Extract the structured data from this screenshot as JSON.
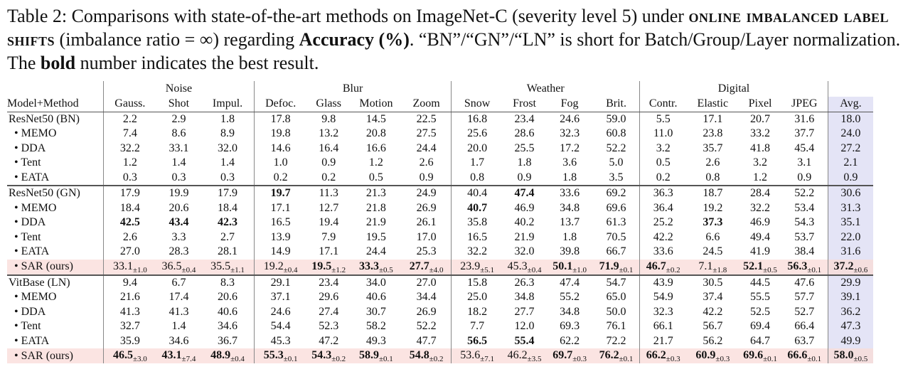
{
  "caption": {
    "part1": "Table 2: Comparisons with state-of-the-art methods on ImageNet-C (severity level 5) under ",
    "smallcaps": "online imbalanced label shifts",
    "part2": " (imbalance ratio = ∞) regarding ",
    "bold1": "Accuracy (%)",
    "part3": ". “BN”/“GN”/“LN” is short for Batch/Group/Layer normalization. The ",
    "bold2": "bold",
    "part4": " number indicates the best result."
  },
  "groups": [
    "Noise",
    "Blur",
    "Weather",
    "Digital"
  ],
  "columns": [
    "Model+Method",
    "Gauss.",
    "Shot",
    "Impul.",
    "Defoc.",
    "Glass",
    "Motion",
    "Zoom",
    "Snow",
    "Frost",
    "Fog",
    "Brit.",
    "Contr.",
    "Elastic",
    "Pixel",
    "JPEG",
    "Avg."
  ],
  "blocks": [
    [
      {
        "label": "ResNet50 (BN)",
        "cells": [
          "2.2",
          "2.9",
          "1.8",
          "17.8",
          "9.8",
          "14.5",
          "22.5",
          "16.8",
          "23.4",
          "24.6",
          "59.0",
          "5.5",
          "17.1",
          "20.7",
          "31.6",
          "18.0"
        ]
      },
      {
        "label": "• MEMO",
        "cells": [
          "7.4",
          "8.6",
          "8.9",
          "19.8",
          "13.2",
          "20.8",
          "27.5",
          "25.6",
          "28.6",
          "32.3",
          "60.8",
          "11.0",
          "23.8",
          "33.2",
          "37.7",
          "24.0"
        ]
      },
      {
        "label": "• DDA",
        "cells": [
          "32.2",
          "33.1",
          "32.0",
          "14.6",
          "16.4",
          "16.6",
          "24.4",
          "20.0",
          "25.5",
          "17.2",
          "52.2",
          "3.2",
          "35.7",
          "41.8",
          "45.4",
          "27.2"
        ]
      },
      {
        "label": "• Tent",
        "cells": [
          "1.2",
          "1.4",
          "1.4",
          "1.0",
          "0.9",
          "1.2",
          "2.6",
          "1.7",
          "1.8",
          "3.6",
          "5.0",
          "0.5",
          "2.6",
          "3.2",
          "3.1",
          "2.1"
        ]
      },
      {
        "label": "• EATA",
        "cells": [
          "0.3",
          "0.3",
          "0.3",
          "0.2",
          "0.2",
          "0.5",
          "0.9",
          "0.8",
          "0.9",
          "1.8",
          "3.5",
          "0.2",
          "0.8",
          "1.2",
          "0.9",
          "0.9"
        ]
      }
    ],
    [
      {
        "label": "ResNet50 (GN)",
        "cells": [
          "17.9",
          "19.9",
          "17.9",
          "19.7",
          "11.3",
          "21.3",
          "24.9",
          "40.4",
          "47.4",
          "33.6",
          "69.2",
          "36.3",
          "18.7",
          "28.4",
          "52.2",
          "30.6"
        ],
        "bold": [
          3,
          8
        ]
      },
      {
        "label": "• MEMO",
        "cells": [
          "18.4",
          "20.6",
          "18.4",
          "17.1",
          "12.7",
          "21.8",
          "26.9",
          "40.7",
          "46.9",
          "34.8",
          "69.6",
          "36.4",
          "19.2",
          "32.2",
          "53.4",
          "31.3"
        ],
        "bold": [
          7
        ]
      },
      {
        "label": "• DDA",
        "cells": [
          "42.5",
          "43.4",
          "42.3",
          "16.5",
          "19.4",
          "21.9",
          "26.1",
          "35.8",
          "40.2",
          "13.7",
          "61.3",
          "25.2",
          "37.3",
          "46.9",
          "54.3",
          "35.1"
        ],
        "bold": [
          0,
          1,
          2,
          12
        ]
      },
      {
        "label": "• Tent",
        "cells": [
          "2.6",
          "3.3",
          "2.7",
          "13.9",
          "7.9",
          "19.5",
          "17.0",
          "16.5",
          "21.9",
          "1.8",
          "70.5",
          "42.2",
          "6.6",
          "49.4",
          "53.7",
          "22.0"
        ]
      },
      {
        "label": "• EATA",
        "cells": [
          "27.0",
          "28.3",
          "28.1",
          "14.9",
          "17.1",
          "24.4",
          "25.3",
          "32.2",
          "32.0",
          "39.8",
          "66.7",
          "33.6",
          "24.5",
          "41.9",
          "38.4",
          "31.6"
        ]
      },
      {
        "label": "• SAR (ours)",
        "sar": true,
        "cells": [
          "33.1",
          "36.5",
          "35.5",
          "19.2",
          "19.5",
          "33.3",
          "27.7",
          "23.9",
          "45.3",
          "50.1",
          "71.9",
          "46.7",
          "7.1",
          "52.1",
          "56.3",
          "37.2"
        ],
        "std": [
          "±1.0",
          "±0.4",
          "±1.1",
          "±0.4",
          "±1.2",
          "±0.5",
          "±4.0",
          "±5.1",
          "±0.4",
          "±1.0",
          "±0.1",
          "±0.2",
          "±1.8",
          "±0.5",
          "±0.1",
          "±0.6"
        ],
        "bold": [
          4,
          5,
          6,
          9,
          10,
          11,
          13,
          14,
          15
        ]
      }
    ],
    [
      {
        "label": "VitBase (LN)",
        "cells": [
          "9.4",
          "6.7",
          "8.3",
          "29.1",
          "23.4",
          "34.0",
          "27.0",
          "15.8",
          "26.3",
          "47.4",
          "54.7",
          "43.9",
          "30.5",
          "44.5",
          "47.6",
          "29.9"
        ]
      },
      {
        "label": "• MEMO",
        "cells": [
          "21.6",
          "17.4",
          "20.6",
          "37.1",
          "29.6",
          "40.6",
          "34.4",
          "25.0",
          "34.8",
          "55.2",
          "65.0",
          "54.9",
          "37.4",
          "55.5",
          "57.7",
          "39.1"
        ]
      },
      {
        "label": "• DDA",
        "cells": [
          "41.3",
          "41.3",
          "40.6",
          "24.6",
          "27.4",
          "30.7",
          "26.9",
          "18.2",
          "27.7",
          "34.8",
          "50.0",
          "32.3",
          "42.2",
          "52.5",
          "52.7",
          "36.2"
        ]
      },
      {
        "label": "• Tent",
        "cells": [
          "32.7",
          "1.4",
          "34.6",
          "54.4",
          "52.3",
          "58.2",
          "52.2",
          "7.7",
          "12.0",
          "69.3",
          "76.1",
          "66.1",
          "56.7",
          "69.4",
          "66.4",
          "47.3"
        ]
      },
      {
        "label": "• EATA",
        "cells": [
          "35.9",
          "34.6",
          "36.7",
          "45.3",
          "47.2",
          "49.3",
          "47.7",
          "56.5",
          "55.4",
          "62.2",
          "72.2",
          "21.7",
          "56.2",
          "64.7",
          "63.7",
          "49.9"
        ],
        "bold": [
          7,
          8
        ]
      },
      {
        "label": "• SAR (ours)",
        "sar": true,
        "cells": [
          "46.5",
          "43.1",
          "48.9",
          "55.3",
          "54.3",
          "58.9",
          "54.8",
          "53.6",
          "46.2",
          "69.7",
          "76.2",
          "66.2",
          "60.9",
          "69.6",
          "66.6",
          "58.0"
        ],
        "std": [
          "±3.0",
          "±7.4",
          "±0.4",
          "±0.1",
          "±0.2",
          "±0.1",
          "±0.2",
          "±7.1",
          "±3.5",
          "±0.3",
          "±0.1",
          "±0.3",
          "±0.3",
          "±0.1",
          "±0.1",
          "±0.5"
        ],
        "bold": [
          0,
          1,
          2,
          3,
          4,
          5,
          6,
          9,
          10,
          11,
          12,
          13,
          14,
          15
        ]
      }
    ]
  ]
}
